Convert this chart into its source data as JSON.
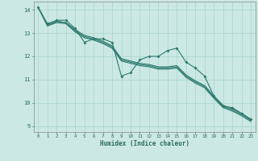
{
  "xlabel": "Humidex (Indice chaleur)",
  "bg_color": "#cbe8e4",
  "grid_color": "#a8d4cc",
  "line_color": "#2d7a6e",
  "xlim": [
    -0.5,
    23.5
  ],
  "ylim": [
    8.75,
    14.35
  ],
  "xticks": [
    0,
    1,
    2,
    3,
    4,
    5,
    6,
    7,
    8,
    9,
    10,
    11,
    12,
    13,
    14,
    15,
    16,
    17,
    18,
    19,
    20,
    21,
    22,
    23
  ],
  "yticks": [
    9,
    10,
    11,
    12,
    13,
    14
  ],
  "series_main": [
    14.1,
    13.4,
    13.55,
    13.55,
    13.2,
    12.6,
    12.75,
    12.75,
    12.6,
    11.15,
    11.3,
    11.85,
    12.0,
    12.0,
    12.25,
    12.35,
    11.75,
    11.5,
    11.15,
    10.3,
    9.85,
    9.8,
    9.55,
    9.3
  ],
  "series_smooth1": [
    14.1,
    13.35,
    13.5,
    13.45,
    13.15,
    12.9,
    12.8,
    12.65,
    12.45,
    11.9,
    11.8,
    11.7,
    11.65,
    11.55,
    11.55,
    11.6,
    11.2,
    10.95,
    10.75,
    10.3,
    9.9,
    9.75,
    9.55,
    9.3
  ],
  "series_smooth2": [
    14.1,
    13.35,
    13.5,
    13.45,
    13.1,
    12.85,
    12.75,
    12.6,
    12.4,
    11.85,
    11.75,
    11.65,
    11.6,
    11.5,
    11.5,
    11.55,
    11.15,
    10.9,
    10.7,
    10.25,
    9.85,
    9.7,
    9.5,
    9.25
  ],
  "series_smooth3": [
    14.1,
    13.3,
    13.45,
    13.4,
    13.05,
    12.8,
    12.7,
    12.55,
    12.35,
    11.8,
    11.7,
    11.6,
    11.55,
    11.45,
    11.45,
    11.5,
    11.1,
    10.85,
    10.65,
    10.2,
    9.8,
    9.65,
    9.45,
    9.2
  ]
}
